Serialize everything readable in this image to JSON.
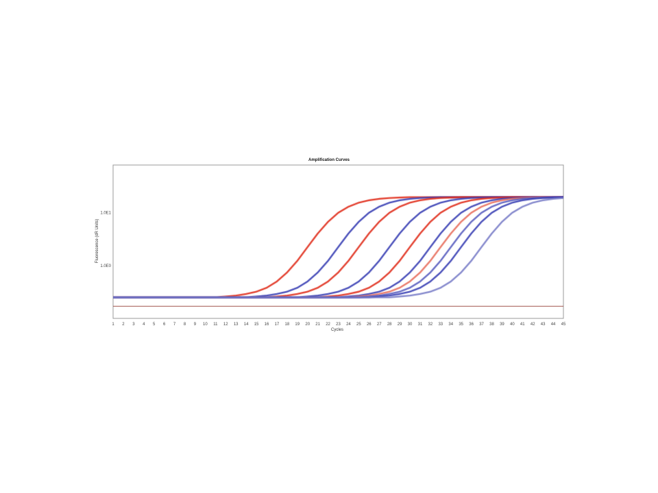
{
  "chart_data": {
    "type": "line",
    "title": "Amplification Curves",
    "xlabel": "Cycles",
    "ylabel": "Fluorescence (dR Units)",
    "xlim": [
      1,
      45
    ],
    "ylim": [
      0.1,
      80
    ],
    "y_scale": "log",
    "x_ticks": [
      1,
      2,
      3,
      4,
      5,
      6,
      7,
      8,
      9,
      10,
      11,
      12,
      13,
      14,
      15,
      16,
      17,
      18,
      19,
      20,
      21,
      22,
      23,
      24,
      25,
      26,
      27,
      28,
      29,
      30,
      31,
      32,
      33,
      34,
      35,
      36,
      37,
      38,
      39,
      40,
      41,
      42,
      43,
      44,
      45
    ],
    "y_ticks": [
      {
        "value": 10,
        "label": "1.0E1"
      },
      {
        "value": 1,
        "label": "1.0E0"
      }
    ],
    "grid": false,
    "legend": "none",
    "threshold": {
      "value": 0.17,
      "color": "#a0524a"
    },
    "x": [
      1,
      2,
      3,
      4,
      5,
      6,
      7,
      8,
      9,
      10,
      11,
      12,
      13,
      14,
      15,
      16,
      17,
      18,
      19,
      20,
      21,
      22,
      23,
      24,
      25,
      26,
      27,
      28,
      29,
      30,
      31,
      32,
      33,
      34,
      35,
      36,
      37,
      38,
      39,
      40,
      41,
      42,
      43,
      44,
      45
    ],
    "series": [
      {
        "color": "#e0301e",
        "values": [
          0.25,
          0.25,
          0.25,
          0.25,
          0.25,
          0.25,
          0.25,
          0.25,
          0.25,
          0.25,
          0.25,
          0.26,
          0.27,
          0.29,
          0.32,
          0.38,
          0.5,
          0.74,
          1.23,
          2.24,
          4.05,
          6.75,
          10.0,
          13.0,
          15.5,
          17.2,
          18.3,
          19.0,
          19.4,
          19.7,
          19.7,
          19.7,
          19.7,
          19.7,
          19.7,
          19.7,
          19.7,
          19.7,
          19.7,
          19.7,
          19.7,
          19.7,
          19.7,
          19.7,
          19.7
        ]
      },
      {
        "color": "#3a40b4",
        "values": [
          0.25,
          0.25,
          0.25,
          0.25,
          0.25,
          0.25,
          0.25,
          0.25,
          0.25,
          0.25,
          0.25,
          0.25,
          0.25,
          0.25,
          0.26,
          0.27,
          0.29,
          0.32,
          0.38,
          0.5,
          0.74,
          1.23,
          2.24,
          4.05,
          6.75,
          10.0,
          13.0,
          15.5,
          17.2,
          18.3,
          19.0,
          19.4,
          19.7,
          19.7,
          19.7,
          19.7,
          19.7,
          19.7,
          19.7,
          19.7,
          19.7,
          19.7,
          19.7,
          19.7,
          19.7
        ]
      },
      {
        "color": "#e0301e",
        "values": [
          0.25,
          0.25,
          0.25,
          0.25,
          0.25,
          0.25,
          0.25,
          0.25,
          0.25,
          0.25,
          0.25,
          0.25,
          0.25,
          0.25,
          0.25,
          0.25,
          0.26,
          0.27,
          0.29,
          0.32,
          0.38,
          0.5,
          0.74,
          1.23,
          2.24,
          4.05,
          6.75,
          10.0,
          13.0,
          15.5,
          17.2,
          18.3,
          19.0,
          19.4,
          19.7,
          19.7,
          19.7,
          19.7,
          19.7,
          19.7,
          19.7,
          19.7,
          19.7,
          19.7,
          19.7
        ]
      },
      {
        "color": "#3a40b4",
        "values": [
          0.25,
          0.25,
          0.25,
          0.25,
          0.25,
          0.25,
          0.25,
          0.25,
          0.25,
          0.25,
          0.25,
          0.25,
          0.25,
          0.25,
          0.25,
          0.25,
          0.25,
          0.25,
          0.25,
          0.26,
          0.27,
          0.29,
          0.32,
          0.38,
          0.5,
          0.74,
          1.23,
          2.24,
          4.05,
          6.75,
          10.0,
          13.0,
          15.5,
          17.2,
          18.3,
          19.0,
          19.4,
          19.7,
          19.7,
          19.7,
          19.7,
          19.7,
          19.7,
          19.7,
          19.7
        ]
      },
      {
        "color": "#e0301e",
        "values": [
          0.25,
          0.25,
          0.25,
          0.25,
          0.25,
          0.25,
          0.25,
          0.25,
          0.25,
          0.25,
          0.25,
          0.25,
          0.25,
          0.25,
          0.25,
          0.25,
          0.25,
          0.25,
          0.25,
          0.25,
          0.25,
          0.26,
          0.27,
          0.29,
          0.32,
          0.38,
          0.5,
          0.74,
          1.23,
          2.24,
          4.05,
          6.75,
          10.0,
          13.0,
          15.5,
          17.2,
          18.3,
          19.0,
          19.4,
          19.7,
          19.7,
          19.7,
          19.7,
          19.7,
          19.7
        ]
      },
      {
        "color": "#3a40b4",
        "values": [
          0.25,
          0.25,
          0.25,
          0.25,
          0.25,
          0.25,
          0.25,
          0.25,
          0.25,
          0.25,
          0.25,
          0.25,
          0.25,
          0.25,
          0.25,
          0.25,
          0.25,
          0.25,
          0.25,
          0.25,
          0.25,
          0.25,
          0.25,
          0.26,
          0.27,
          0.29,
          0.32,
          0.38,
          0.5,
          0.74,
          1.23,
          2.24,
          4.05,
          6.75,
          10.0,
          13.0,
          15.5,
          17.2,
          18.3,
          19.0,
          19.4,
          19.7,
          19.7,
          19.7,
          19.7
        ]
      },
      {
        "color": "#e8705e",
        "values": [
          0.25,
          0.25,
          0.25,
          0.25,
          0.25,
          0.25,
          0.25,
          0.25,
          0.25,
          0.25,
          0.25,
          0.25,
          0.25,
          0.25,
          0.25,
          0.25,
          0.25,
          0.25,
          0.25,
          0.25,
          0.25,
          0.25,
          0.25,
          0.25,
          0.26,
          0.27,
          0.29,
          0.32,
          0.38,
          0.5,
          0.74,
          1.23,
          2.24,
          4.05,
          6.75,
          10.0,
          13.0,
          15.5,
          17.2,
          18.3,
          19.0,
          19.4,
          19.7,
          19.7,
          19.7
        ]
      },
      {
        "color": "#5a5fc0",
        "values": [
          0.25,
          0.25,
          0.25,
          0.25,
          0.25,
          0.25,
          0.25,
          0.25,
          0.25,
          0.25,
          0.25,
          0.25,
          0.25,
          0.25,
          0.25,
          0.25,
          0.25,
          0.25,
          0.25,
          0.25,
          0.25,
          0.25,
          0.25,
          0.25,
          0.25,
          0.26,
          0.27,
          0.29,
          0.32,
          0.38,
          0.5,
          0.74,
          1.23,
          2.24,
          4.05,
          6.75,
          10.0,
          13.0,
          15.5,
          17.2,
          18.3,
          19.0,
          19.4,
          19.7,
          19.7
        ]
      },
      {
        "color": "#3a40b4",
        "values": [
          0.25,
          0.25,
          0.25,
          0.25,
          0.25,
          0.25,
          0.25,
          0.25,
          0.25,
          0.25,
          0.25,
          0.25,
          0.25,
          0.25,
          0.25,
          0.25,
          0.25,
          0.25,
          0.25,
          0.25,
          0.25,
          0.25,
          0.25,
          0.25,
          0.25,
          0.25,
          0.26,
          0.27,
          0.29,
          0.32,
          0.38,
          0.5,
          0.74,
          1.23,
          2.24,
          4.05,
          6.75,
          10.0,
          13.0,
          15.5,
          17.2,
          18.3,
          19.0,
          19.4,
          19.7
        ]
      },
      {
        "color": "#7a7ec8",
        "values": [
          0.25,
          0.25,
          0.25,
          0.25,
          0.25,
          0.25,
          0.25,
          0.25,
          0.25,
          0.25,
          0.25,
          0.25,
          0.25,
          0.25,
          0.25,
          0.25,
          0.25,
          0.25,
          0.25,
          0.25,
          0.25,
          0.25,
          0.25,
          0.25,
          0.25,
          0.25,
          0.25,
          0.25,
          0.26,
          0.27,
          0.29,
          0.32,
          0.38,
          0.5,
          0.74,
          1.23,
          2.24,
          4.05,
          6.75,
          10.0,
          13.0,
          15.5,
          17.2,
          18.3,
          19.0
        ]
      }
    ]
  }
}
